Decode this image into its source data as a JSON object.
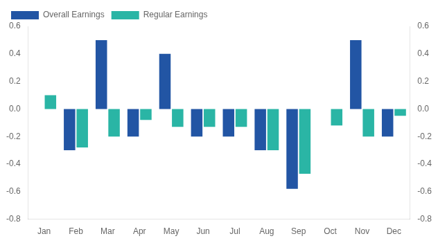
{
  "chart_data": {
    "type": "bar",
    "categories": [
      "Jan",
      "Feb",
      "Mar",
      "Apr",
      "May",
      "Jun",
      "Jul",
      "Aug",
      "Sep",
      "Oct",
      "Nov",
      "Dec"
    ],
    "series": [
      {
        "name": "Overall Earnings",
        "color": "#2255A4",
        "values": [
          0.0,
          -0.3,
          0.5,
          -0.2,
          0.4,
          -0.2,
          -0.2,
          -0.3,
          -0.58,
          0.0,
          0.5,
          -0.2
        ]
      },
      {
        "name": "Regular Earnings",
        "color": "#2AB5A5",
        "values": [
          0.1,
          -0.28,
          -0.2,
          -0.08,
          -0.13,
          -0.13,
          -0.13,
          -0.3,
          -0.47,
          -0.12,
          -0.2,
          -0.05
        ]
      }
    ],
    "ylim": [
      -0.8,
      0.6
    ],
    "yticks": [
      -0.8,
      -0.6,
      -0.4,
      -0.2,
      {
        "value": 0.0,
        "label": "0.0"
      },
      0.2,
      0.4,
      0.6
    ],
    "y2lim": [
      -0.8,
      0.6
    ],
    "y2ticks": [
      -0.8,
      -0.6,
      -0.4,
      -0.2,
      {
        "value": 0.0,
        "label": "0.0"
      },
      0.2,
      0.4,
      0.6
    ],
    "grid": false,
    "legend": "top-left"
  }
}
